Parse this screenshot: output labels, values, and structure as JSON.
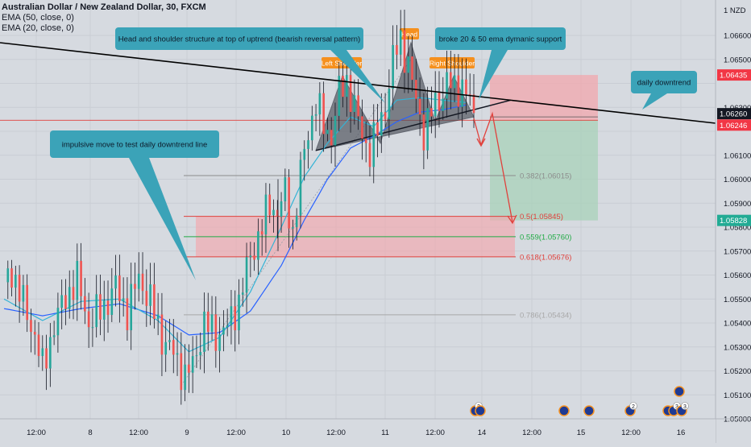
{
  "header": {
    "title": "Australian Dollar / New Zealand Dollar, 30, FXCM",
    "indicators": [
      "EMA (50, close, 0)",
      "EMA (20, close, 0)"
    ]
  },
  "axis": {
    "currency_label": "NZD",
    "y_ticks": [
      1.05,
      1.051,
      1.052,
      1.053,
      1.054,
      1.055,
      1.056,
      1.057,
      1.058,
      1.059,
      1.06,
      1.061,
      1.062,
      1.063,
      1.064,
      1.065,
      1.066
    ],
    "y_tick_labels": [
      "1.05000",
      "1.05100",
      "1.05200",
      "1.05300",
      "1.05400",
      "1.05500",
      "1.05600",
      "1.05700",
      "1.05800",
      "1.05900",
      "1.06000",
      "1.06100",
      "",
      "1.06300",
      "",
      "1.06500",
      "1.06600"
    ],
    "x_ticks": [
      "12:00",
      "8",
      "12:00",
      "9",
      "12:00",
      "10",
      "12:00",
      "11",
      "12:00",
      "14",
      "12:00",
      "15",
      "12:00",
      "16"
    ],
    "price_labels": [
      {
        "value": 1.06435,
        "label": "1.06435",
        "color": "#f23645"
      },
      {
        "value": 1.0626,
        "label": "1.06260",
        "color": "#131722"
      },
      {
        "value": 1.06246,
        "label": "1.06246",
        "color": "#f23645"
      },
      {
        "value": 1.05828,
        "label": "1.05828",
        "color": "#22ab94"
      }
    ]
  },
  "colors": {
    "bull": "#26a69a",
    "bear": "#ef5350",
    "wick": "#131722",
    "ema20": "#33b3d6",
    "ema50": "#2962ff",
    "trend": "#000000",
    "callout": "#3ba3b8",
    "tag": "#f5901e"
  },
  "chart_data": {
    "type": "candlestick",
    "symbol": "AUDNZD",
    "timeframe": "30",
    "ylim": [
      1.0497,
      1.067
    ],
    "x_labels": [
      "12:00",
      "8",
      "12:00",
      "9",
      "12:00",
      "10",
      "12:00",
      "11",
      "12:00",
      "14",
      "12:00",
      "15",
      "12:00",
      "16"
    ],
    "price_path": [
      [
        0,
        1.0557
      ],
      [
        2,
        1.0562
      ],
      [
        5,
        1.0548
      ],
      [
        8,
        1.0535
      ],
      [
        10,
        1.0521
      ],
      [
        13,
        1.0539
      ],
      [
        16,
        1.0551
      ],
      [
        19,
        1.0558
      ],
      [
        22,
        1.054
      ],
      [
        26,
        1.0547
      ],
      [
        29,
        1.0555
      ],
      [
        32,
        1.0545
      ],
      [
        35,
        1.0559
      ],
      [
        38,
        1.0549
      ],
      [
        41,
        1.0534
      ],
      [
        44,
        1.0527
      ],
      [
        47,
        1.0518
      ],
      [
        49,
        1.0522
      ],
      [
        52,
        1.054
      ],
      [
        55,
        1.0535
      ],
      [
        58,
        1.0538
      ],
      [
        61,
        1.0549
      ],
      [
        64,
        1.0568
      ],
      [
        67,
        1.058
      ],
      [
        69,
        1.059
      ],
      [
        71,
        1.0586
      ],
      [
        73,
        1.0594
      ],
      [
        75,
        1.0578
      ],
      [
        77,
        1.0602
      ],
      [
        79,
        1.062
      ],
      [
        81,
        1.0632
      ],
      [
        83,
        1.0622
      ],
      [
        85,
        1.0618
      ],
      [
        87,
        1.0636
      ],
      [
        89,
        1.0641
      ],
      [
        91,
        1.063
      ],
      [
        93,
        1.0618
      ],
      [
        95,
        1.0612
      ],
      [
        97,
        1.062
      ],
      [
        99,
        1.063
      ],
      [
        101,
        1.065
      ],
      [
        103,
        1.0658
      ],
      [
        105,
        1.0648
      ],
      [
        107,
        1.0632
      ],
      [
        109,
        1.062
      ],
      [
        111,
        1.0628
      ],
      [
        113,
        1.0633
      ],
      [
        115,
        1.0641
      ],
      [
        117,
        1.0637
      ],
      [
        119,
        1.064
      ],
      [
        121,
        1.0632
      ],
      [
        122,
        1.0625
      ]
    ],
    "ema20_path": [
      [
        0,
        1.055
      ],
      [
        10,
        1.0541
      ],
      [
        20,
        1.0549
      ],
      [
        30,
        1.055
      ],
      [
        40,
        1.0541
      ],
      [
        48,
        1.0528
      ],
      [
        56,
        1.0534
      ],
      [
        64,
        1.0553
      ],
      [
        72,
        1.058
      ],
      [
        78,
        1.0601
      ],
      [
        84,
        1.0615
      ],
      [
        90,
        1.0626
      ],
      [
        96,
        1.0622
      ],
      [
        102,
        1.0633
      ],
      [
        108,
        1.0634
      ],
      [
        114,
        1.0633
      ],
      [
        120,
        1.0632
      ]
    ],
    "ema50_path": [
      [
        0,
        1.0546
      ],
      [
        10,
        1.0543
      ],
      [
        20,
        1.0546
      ],
      [
        30,
        1.0548
      ],
      [
        40,
        1.0543
      ],
      [
        48,
        1.0535
      ],
      [
        56,
        1.0536
      ],
      [
        64,
        1.0545
      ],
      [
        72,
        1.0564
      ],
      [
        78,
        1.0583
      ],
      [
        84,
        1.06
      ],
      [
        90,
        1.0613
      ],
      [
        96,
        1.0618
      ],
      [
        102,
        1.0624
      ],
      [
        108,
        1.0628
      ],
      [
        114,
        1.0629
      ],
      [
        120,
        1.0631
      ]
    ],
    "fib_levels": [
      {
        "label": "0.382(1.06015)",
        "value": 1.06015,
        "color": "#8c8c8c"
      },
      {
        "label": "0.5(1.05845)",
        "value": 1.05845,
        "color": "#e0413c"
      },
      {
        "label": "0.559(1.05760)",
        "value": 1.0576,
        "color": "#22ab46"
      },
      {
        "label": "0.618(1.05676)",
        "value": 1.05676,
        "color": "#e0413c"
      },
      {
        "label": "0.786(1.05434)",
        "value": 1.05434,
        "color": "#a8a8a8"
      }
    ],
    "zones": {
      "stop": [
        1.06246,
        1.06435
      ],
      "target": [
        1.05828,
        1.06246
      ],
      "fib_zone": [
        1.05676,
        1.05845
      ]
    },
    "pattern_labels": [
      "Left Shoulder",
      "Head",
      "Right Shoulder"
    ],
    "annotations": [
      "Head and shoulder structure at top of uptrend (bearish reversal pattern)",
      "broke 20 & 50 ema dymanic support",
      "impulsive move to test daily downtrend line",
      "daily downtrend"
    ],
    "event_badges": [
      "2",
      "2",
      "3",
      "3"
    ]
  }
}
